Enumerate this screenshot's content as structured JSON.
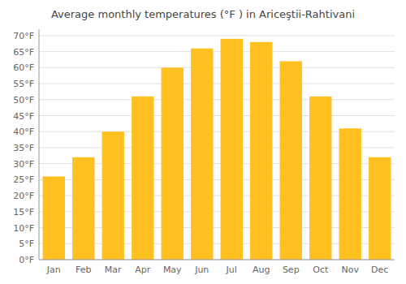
{
  "chart_data": {
    "type": "bar",
    "title": "Average monthly temperatures (°F ) in Ariceştii-Rahtivani",
    "categories": [
      "Jan",
      "Feb",
      "Mar",
      "Apr",
      "May",
      "Jun",
      "Jul",
      "Aug",
      "Sep",
      "Oct",
      "Nov",
      "Dec"
    ],
    "values": [
      26,
      32,
      40,
      51,
      60,
      66,
      69,
      68,
      62,
      51,
      41,
      32
    ],
    "color": "#FFC020",
    "ylim": [
      0,
      72
    ],
    "yticks": [
      {
        "value": 0,
        "label": "0°F"
      },
      {
        "value": 5,
        "label": "5°F"
      },
      {
        "value": 10,
        "label": "10°F"
      },
      {
        "value": 15,
        "label": "15°F"
      },
      {
        "value": 20,
        "label": "20°F"
      },
      {
        "value": 25,
        "label": "25°F"
      },
      {
        "value": 30,
        "label": "30°F"
      },
      {
        "value": 35,
        "label": "35°F"
      },
      {
        "value": 40,
        "label": "40°F"
      },
      {
        "value": 45,
        "label": "45°F"
      },
      {
        "value": 50,
        "label": "50°F"
      },
      {
        "value": 55,
        "label": "55°F"
      },
      {
        "value": 60,
        "label": "60°F"
      },
      {
        "value": 65,
        "label": "65°F"
      },
      {
        "value": 70,
        "label": "70°F"
      }
    ],
    "grid": true
  }
}
